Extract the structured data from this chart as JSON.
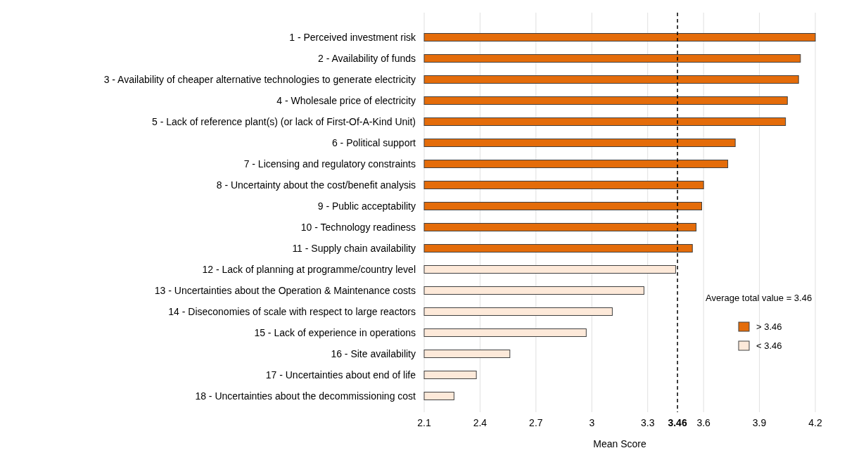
{
  "chart_data": {
    "type": "bar",
    "orientation": "horizontal",
    "xlabel": "Mean Score",
    "legend_title": "Average total value = 3.46",
    "legend": "right",
    "grid": "x",
    "categories": [
      "1 - Perceived investment risk",
      "2 - Availability of funds",
      "3 - Availability of cheaper alternative technologies to generate electricity",
      "4 - Wholesale price of electricity",
      "5 - Lack of reference plant(s) (or lack of First-Of-A-Kind Unit)",
      "6 - Political support",
      "7 - Licensing and regulatory constraints",
      "8 - Uncertainty about the cost/benefit analysis",
      "9 - Public acceptability",
      "10 - Technology readiness",
      "11 - Supply chain availability",
      "12 - Lack of planning at programme/country level",
      "13 - Uncertainties about the Operation & Maintenance costs",
      "14 - Diseconomies of scale with respect to large reactors",
      "15 - Lack of experience in operations",
      "16 - Site availability",
      "17 - Uncertainties about end of life",
      "18 - Uncertainties about the decommissioning cost"
    ],
    "series": [
      {
        "name": "> 3.46",
        "color": "#e46c0a",
        "values": [
          4.2,
          4.12,
          4.11,
          4.05,
          4.04,
          3.77,
          3.73,
          3.6,
          3.59,
          3.56,
          3.54,
          null,
          null,
          null,
          null,
          null,
          null,
          null
        ]
      },
      {
        "name": "< 3.46",
        "color": "#fde9d9",
        "values": [
          null,
          null,
          null,
          null,
          null,
          null,
          null,
          null,
          null,
          null,
          null,
          3.45,
          3.28,
          3.11,
          2.97,
          2.56,
          2.38,
          2.26
        ]
      }
    ],
    "xlim": [
      2.1,
      4.2
    ],
    "xticks": [
      2.1,
      2.4,
      2.7,
      3,
      3.3,
      {
        "value": 3.46,
        "label": "3.46"
      },
      3.6,
      3.9,
      4.2
    ],
    "ref_lines": [
      {
        "axis": "x",
        "value": 3.46,
        "line_style": "dashed",
        "color": "#000000"
      }
    ]
  }
}
